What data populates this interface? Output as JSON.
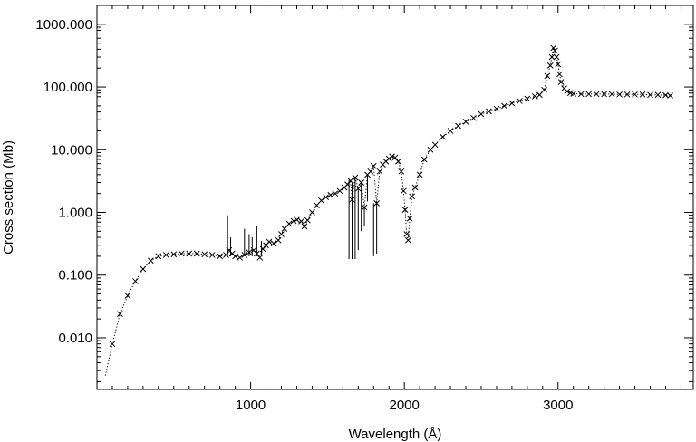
{
  "chart_data": {
    "type": "scatter",
    "title": "",
    "xlabel": "Wavelength (Å)",
    "ylabel": "Cross section (Mb)",
    "xlim": [
      0,
      3880
    ],
    "ylim": [
      0.0015,
      2000
    ],
    "yscale": "log",
    "grid": false,
    "x_ticks": [
      1000,
      2000,
      3000
    ],
    "x_tick_labels": [
      "1000",
      "2000",
      "3000"
    ],
    "y_ticks": [
      0.01,
      0.1,
      1,
      10,
      100,
      1000
    ],
    "y_tick_labels": [
      "0.010",
      "0.100",
      "1.000",
      "10.000",
      "100.000",
      "1000.000"
    ],
    "colors": {
      "line": "#000000",
      "marker": "#000000",
      "axes": "#000000",
      "background": "#ffffff"
    },
    "series": [
      {
        "style": "dotted-line-with-x-markers",
        "points": [
          [
            55,
            0.0025
          ],
          [
            100,
            0.008
          ],
          [
            150,
            0.024
          ],
          [
            200,
            0.047
          ],
          [
            250,
            0.08
          ],
          [
            300,
            0.125
          ],
          [
            350,
            0.17
          ],
          [
            400,
            0.2
          ],
          [
            450,
            0.21
          ],
          [
            500,
            0.215
          ],
          [
            550,
            0.22
          ],
          [
            600,
            0.22
          ],
          [
            650,
            0.22
          ],
          [
            700,
            0.215
          ],
          [
            750,
            0.21
          ],
          [
            800,
            0.2
          ],
          [
            840,
            0.21
          ],
          [
            860,
            0.25
          ],
          [
            880,
            0.22
          ],
          [
            900,
            0.2
          ],
          [
            930,
            0.19
          ],
          [
            960,
            0.21
          ],
          [
            990,
            0.23
          ],
          [
            1020,
            0.25
          ],
          [
            1040,
            0.22
          ],
          [
            1060,
            0.19
          ],
          [
            1080,
            0.26
          ],
          [
            1100,
            0.3
          ],
          [
            1120,
            0.34
          ],
          [
            1150,
            0.32
          ],
          [
            1180,
            0.36
          ],
          [
            1200,
            0.45
          ],
          [
            1220,
            0.55
          ],
          [
            1250,
            0.66
          ],
          [
            1280,
            0.73
          ],
          [
            1300,
            0.76
          ],
          [
            1330,
            0.72
          ],
          [
            1350,
            0.6
          ],
          [
            1370,
            0.75
          ],
          [
            1400,
            1.0
          ],
          [
            1430,
            1.3
          ],
          [
            1460,
            1.55
          ],
          [
            1490,
            1.75
          ],
          [
            1520,
            1.9
          ],
          [
            1550,
            2.0
          ],
          [
            1580,
            2.2
          ],
          [
            1610,
            2.5
          ],
          [
            1630,
            2.8
          ],
          [
            1650,
            3.2
          ],
          [
            1660,
            1.6
          ],
          [
            1680,
            3.6
          ],
          [
            1700,
            2.4
          ],
          [
            1720,
            3.0
          ],
          [
            1740,
            1.2
          ],
          [
            1760,
            4.0
          ],
          [
            1780,
            4.5
          ],
          [
            1800,
            5.5
          ],
          [
            1820,
            1.4
          ],
          [
            1840,
            4.5
          ],
          [
            1860,
            5.8
          ],
          [
            1880,
            6.5
          ],
          [
            1900,
            7.2
          ],
          [
            1920,
            7.8
          ],
          [
            1940,
            7.5
          ],
          [
            1960,
            6.5
          ],
          [
            1980,
            4.5
          ],
          [
            1995,
            2.2
          ],
          [
            2005,
            1.1
          ],
          [
            2015,
            0.45
          ],
          [
            2025,
            0.36
          ],
          [
            2035,
            0.8
          ],
          [
            2050,
            1.8
          ],
          [
            2070,
            2.5
          ],
          [
            2100,
            4.0
          ],
          [
            2130,
            7.0
          ],
          [
            2170,
            10
          ],
          [
            2200,
            12
          ],
          [
            2250,
            16
          ],
          [
            2300,
            20
          ],
          [
            2350,
            24
          ],
          [
            2400,
            28
          ],
          [
            2450,
            32
          ],
          [
            2500,
            37
          ],
          [
            2550,
            41
          ],
          [
            2600,
            45
          ],
          [
            2650,
            50
          ],
          [
            2700,
            55
          ],
          [
            2750,
            60
          ],
          [
            2800,
            65
          ],
          [
            2850,
            71
          ],
          [
            2880,
            75
          ],
          [
            2910,
            90
          ],
          [
            2930,
            150
          ],
          [
            2950,
            220
          ],
          [
            2960,
            300
          ],
          [
            2970,
            420
          ],
          [
            2980,
            380
          ],
          [
            2990,
            300
          ],
          [
            3000,
            230
          ],
          [
            3010,
            160
          ],
          [
            3020,
            120
          ],
          [
            3040,
            95
          ],
          [
            3060,
            85
          ],
          [
            3080,
            80
          ],
          [
            3100,
            78
          ],
          [
            3150,
            77
          ],
          [
            3200,
            77
          ],
          [
            3250,
            77
          ],
          [
            3300,
            77
          ],
          [
            3350,
            77
          ],
          [
            3400,
            76
          ],
          [
            3450,
            76
          ],
          [
            3500,
            76
          ],
          [
            3550,
            76
          ],
          [
            3600,
            75
          ],
          [
            3650,
            75
          ],
          [
            3700,
            74
          ],
          [
            3730,
            73
          ]
        ]
      },
      {
        "style": "vertical-spike-lines",
        "segments": [
          [
            850,
            0.2,
            0.9
          ],
          [
            870,
            0.2,
            0.4
          ],
          [
            960,
            0.2,
            0.55
          ],
          [
            990,
            0.2,
            0.45
          ],
          [
            1010,
            0.2,
            0.4
          ],
          [
            1040,
            0.2,
            0.6
          ],
          [
            1070,
            0.2,
            0.35
          ],
          [
            1640,
            0.18,
            3.3
          ],
          [
            1660,
            0.18,
            3.0
          ],
          [
            1680,
            0.18,
            3.6
          ],
          [
            1700,
            0.25,
            2.4
          ],
          [
            1720,
            0.5,
            3.0
          ],
          [
            1740,
            0.6,
            1.2
          ],
          [
            1760,
            1.5,
            4.0
          ],
          [
            1800,
            0.2,
            1.4
          ],
          [
            1820,
            0.22,
            1.4
          ]
        ]
      }
    ]
  }
}
